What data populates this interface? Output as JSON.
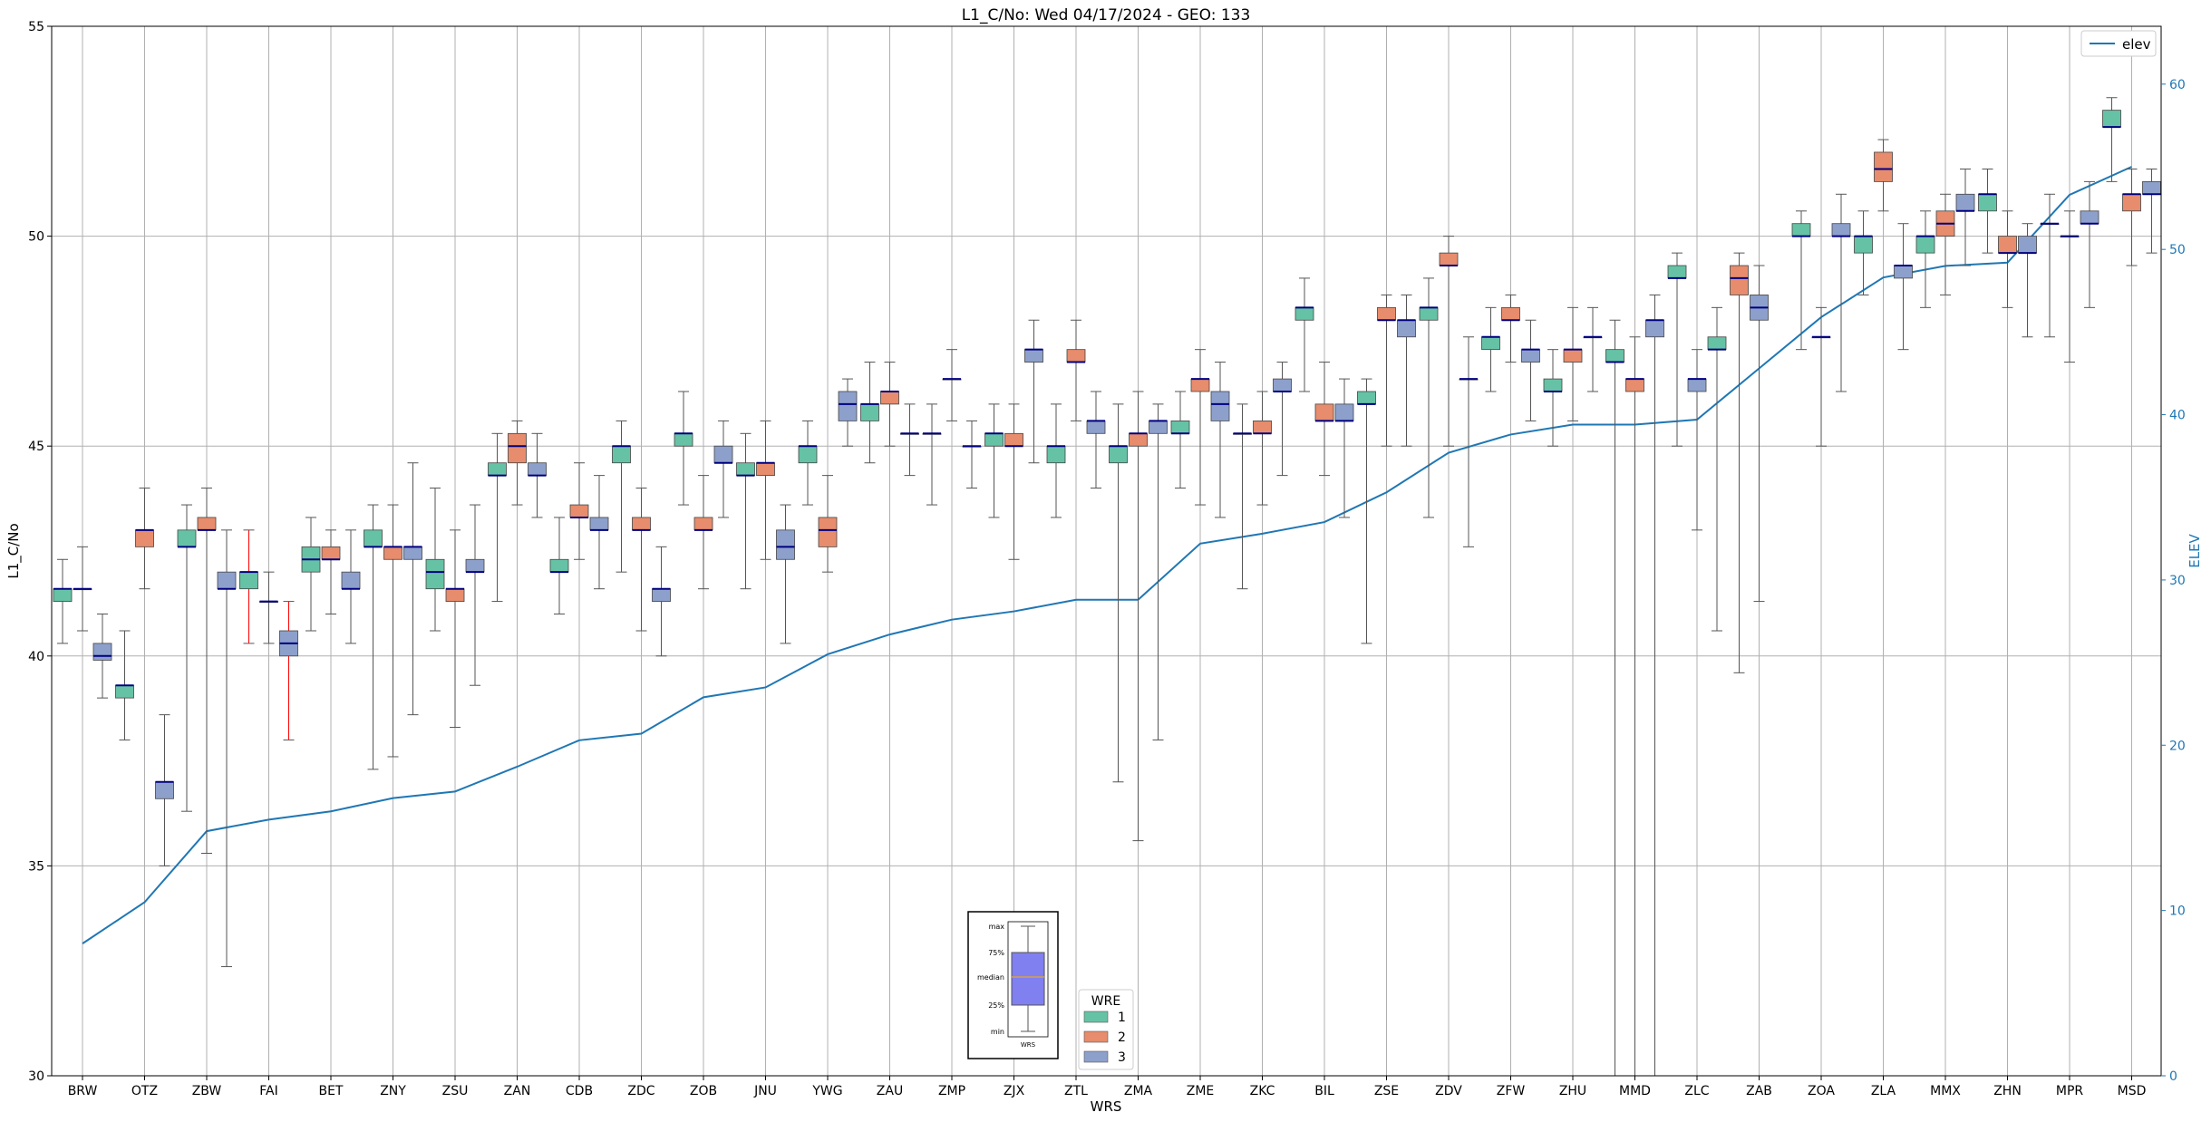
{
  "chart_data": {
    "type": "box",
    "title": "L1_C/No: Wed 04/17/2024 - GEO: 133",
    "xlabel": "WRS",
    "ylabel": "L1_C/No",
    "y2label": "ELEV",
    "ylim": [
      30,
      55
    ],
    "y2lim": [
      0,
      63.5
    ],
    "yticks": [
      30,
      35,
      40,
      45,
      50,
      55
    ],
    "y2ticks": [
      0,
      10,
      20,
      30,
      40,
      50,
      60
    ],
    "grid": true,
    "categories": [
      "BRW",
      "OTZ",
      "ZBW",
      "FAI",
      "BET",
      "ZNY",
      "ZSU",
      "ZAN",
      "CDB",
      "ZDC",
      "ZOB",
      "JNU",
      "YWG",
      "ZAU",
      "ZMP",
      "ZJX",
      "ZTL",
      "ZMA",
      "ZME",
      "ZKC",
      "BIL",
      "ZSE",
      "ZDV",
      "ZFW",
      "ZHU",
      "MMD",
      "ZLC",
      "ZAB",
      "ZOA",
      "ZLA",
      "MMX",
      "ZHN",
      "MPR",
      "MSD"
    ],
    "wre_colors": {
      "1": "#66c2a5",
      "2": "#e78c6c",
      "3": "#8da0cb"
    },
    "boxes": [
      {
        "station": "BRW",
        "wre": 1,
        "min": 40.3,
        "q1": 41.3,
        "median": 41.6,
        "q3": 41.6,
        "max": 42.3
      },
      {
        "station": "BRW",
        "wre": 3,
        "min": 40.6,
        "q1": 41.6,
        "median": 41.6,
        "q3": 41.6,
        "max": 42.6
      },
      {
        "station": "BRW",
        "wre": 3,
        "min": 39.0,
        "q1": 39.9,
        "median": 40.0,
        "q3": 40.3,
        "max": 41.0
      },
      {
        "station": "OTZ",
        "wre": 1,
        "min": 38.0,
        "q1": 39.0,
        "median": 39.3,
        "q3": 39.3,
        "max": 40.6
      },
      {
        "station": "OTZ",
        "wre": 2,
        "min": 41.6,
        "q1": 42.6,
        "median": 43.0,
        "q3": 43.0,
        "max": 44.0
      },
      {
        "station": "OTZ",
        "wre": 3,
        "min": 35.0,
        "q1": 36.6,
        "median": 37.0,
        "q3": 37.0,
        "max": 38.6
      },
      {
        "station": "ZBW",
        "wre": 1,
        "min": 36.3,
        "q1": 42.6,
        "median": 42.6,
        "q3": 43.0,
        "max": 43.6
      },
      {
        "station": "ZBW",
        "wre": 2,
        "min": 35.3,
        "q1": 43.0,
        "median": 43.0,
        "q3": 43.3,
        "max": 44.0
      },
      {
        "station": "ZBW",
        "wre": 3,
        "min": 32.6,
        "q1": 41.6,
        "median": 41.6,
        "q3": 42.0,
        "max": 43.0
      },
      {
        "station": "FAI",
        "wre": 1,
        "min": 40.3,
        "q1": 41.6,
        "median": 42.0,
        "q3": 42.0,
        "max": 43.0,
        "whisker": "#ff0000"
      },
      {
        "station": "FAI",
        "wre": 2,
        "min": 40.3,
        "q1": 41.3,
        "median": 41.3,
        "q3": 41.3,
        "max": 42.0
      },
      {
        "station": "FAI",
        "wre": 3,
        "min": 38.0,
        "q1": 40.0,
        "median": 40.3,
        "q3": 40.6,
        "max": 41.3,
        "whisker": "#ff0000"
      },
      {
        "station": "BET",
        "wre": 1,
        "min": 40.6,
        "q1": 42.0,
        "median": 42.3,
        "q3": 42.6,
        "max": 43.3
      },
      {
        "station": "BET",
        "wre": 2,
        "min": 41.0,
        "q1": 42.3,
        "median": 42.3,
        "q3": 42.6,
        "max": 43.0
      },
      {
        "station": "BET",
        "wre": 3,
        "min": 40.3,
        "q1": 41.6,
        "median": 41.6,
        "q3": 42.0,
        "max": 43.0
      },
      {
        "station": "ZNY",
        "wre": 1,
        "min": 37.3,
        "q1": 42.6,
        "median": 42.6,
        "q3": 43.0,
        "max": 43.6
      },
      {
        "station": "ZNY",
        "wre": 2,
        "min": 37.6,
        "q1": 42.3,
        "median": 42.6,
        "q3": 42.6,
        "max": 43.6
      },
      {
        "station": "ZNY",
        "wre": 3,
        "min": 38.6,
        "q1": 42.3,
        "median": 42.6,
        "q3": 42.6,
        "max": 44.6
      },
      {
        "station": "ZSU",
        "wre": 1,
        "min": 40.6,
        "q1": 41.6,
        "median": 42.0,
        "q3": 42.3,
        "max": 44.0
      },
      {
        "station": "ZSU",
        "wre": 2,
        "min": 38.3,
        "q1": 41.3,
        "median": 41.6,
        "q3": 41.6,
        "max": 43.0
      },
      {
        "station": "ZSU",
        "wre": 3,
        "min": 39.3,
        "q1": 42.0,
        "median": 42.0,
        "q3": 42.3,
        "max": 43.6
      },
      {
        "station": "ZAN",
        "wre": 1,
        "min": 41.3,
        "q1": 44.3,
        "median": 44.3,
        "q3": 44.6,
        "max": 45.3
      },
      {
        "station": "ZAN",
        "wre": 2,
        "min": 43.6,
        "q1": 44.6,
        "median": 45.0,
        "q3": 45.3,
        "max": 45.6
      },
      {
        "station": "ZAN",
        "wre": 3,
        "min": 43.3,
        "q1": 44.3,
        "median": 44.3,
        "q3": 44.6,
        "max": 45.3
      },
      {
        "station": "CDB",
        "wre": 1,
        "min": 41.0,
        "q1": 42.0,
        "median": 42.0,
        "q3": 42.3,
        "max": 43.3
      },
      {
        "station": "CDB",
        "wre": 2,
        "min": 42.3,
        "q1": 43.3,
        "median": 43.3,
        "q3": 43.6,
        "max": 44.6
      },
      {
        "station": "CDB",
        "wre": 3,
        "min": 41.6,
        "q1": 43.0,
        "median": 43.0,
        "q3": 43.3,
        "max": 44.3
      },
      {
        "station": "ZDC",
        "wre": 1,
        "min": 42.0,
        "q1": 44.6,
        "median": 45.0,
        "q3": 45.0,
        "max": 45.6
      },
      {
        "station": "ZDC",
        "wre": 2,
        "min": 40.6,
        "q1": 43.0,
        "median": 43.0,
        "q3": 43.3,
        "max": 44.0
      },
      {
        "station": "ZDC",
        "wre": 3,
        "min": 40.0,
        "q1": 41.3,
        "median": 41.6,
        "q3": 41.6,
        "max": 42.6
      },
      {
        "station": "ZOB",
        "wre": 1,
        "min": 43.6,
        "q1": 45.0,
        "median": 45.3,
        "q3": 45.3,
        "max": 46.3
      },
      {
        "station": "ZOB",
        "wre": 2,
        "min": 41.6,
        "q1": 43.0,
        "median": 43.0,
        "q3": 43.3,
        "max": 44.3
      },
      {
        "station": "ZOB",
        "wre": 3,
        "min": 43.3,
        "q1": 44.6,
        "median": 44.6,
        "q3": 45.0,
        "max": 45.6
      },
      {
        "station": "JNU",
        "wre": 1,
        "min": 41.6,
        "q1": 44.3,
        "median": 44.3,
        "q3": 44.6,
        "max": 45.3
      },
      {
        "station": "JNU",
        "wre": 2,
        "min": 42.3,
        "q1": 44.3,
        "median": 44.6,
        "q3": 44.6,
        "max": 45.6
      },
      {
        "station": "JNU",
        "wre": 3,
        "min": 40.3,
        "q1": 42.3,
        "median": 42.6,
        "q3": 43.0,
        "max": 43.6
      },
      {
        "station": "YWG",
        "wre": 1,
        "min": 43.6,
        "q1": 44.6,
        "median": 45.0,
        "q3": 45.0,
        "max": 45.6
      },
      {
        "station": "YWG",
        "wre": 2,
        "min": 42.0,
        "q1": 42.6,
        "median": 43.0,
        "q3": 43.3,
        "max": 44.3
      },
      {
        "station": "YWG",
        "wre": 3,
        "min": 45.0,
        "q1": 45.6,
        "median": 46.0,
        "q3": 46.3,
        "max": 46.6
      },
      {
        "station": "ZAU",
        "wre": 1,
        "min": 44.6,
        "q1": 45.6,
        "median": 46.0,
        "q3": 46.0,
        "max": 47.0
      },
      {
        "station": "ZAU",
        "wre": 2,
        "min": 45.0,
        "q1": 46.0,
        "median": 46.3,
        "q3": 46.3,
        "max": 47.0
      },
      {
        "station": "ZAU",
        "wre": 3,
        "min": 44.3,
        "q1": 45.3,
        "median": 45.3,
        "q3": 45.3,
        "max": 46.0
      },
      {
        "station": "ZMP",
        "wre": 1,
        "min": 43.6,
        "q1": 45.3,
        "median": 45.3,
        "q3": 45.3,
        "max": 46.0
      },
      {
        "station": "ZMP",
        "wre": 2,
        "min": 45.6,
        "q1": 46.6,
        "median": 46.6,
        "q3": 46.6,
        "max": 47.3
      },
      {
        "station": "ZMP",
        "wre": 3,
        "min": 44.0,
        "q1": 45.0,
        "median": 45.0,
        "q3": 45.0,
        "max": 45.6
      },
      {
        "station": "ZJX",
        "wre": 1,
        "min": 43.3,
        "q1": 45.0,
        "median": 45.3,
        "q3": 45.3,
        "max": 46.0
      },
      {
        "station": "ZJX",
        "wre": 2,
        "min": 42.3,
        "q1": 45.0,
        "median": 45.0,
        "q3": 45.3,
        "max": 46.0
      },
      {
        "station": "ZJX",
        "wre": 3,
        "min": 44.6,
        "q1": 47.0,
        "median": 47.3,
        "q3": 47.3,
        "max": 48.0
      },
      {
        "station": "ZTL",
        "wre": 1,
        "min": 43.3,
        "q1": 44.6,
        "median": 45.0,
        "q3": 45.0,
        "max": 46.0
      },
      {
        "station": "ZTL",
        "wre": 2,
        "min": 45.6,
        "q1": 47.0,
        "median": 47.0,
        "q3": 47.3,
        "max": 48.0
      },
      {
        "station": "ZTL",
        "wre": 3,
        "min": 44.0,
        "q1": 45.3,
        "median": 45.6,
        "q3": 45.6,
        "max": 46.3
      },
      {
        "station": "ZMA",
        "wre": 1,
        "min": 37.0,
        "q1": 44.6,
        "median": 45.0,
        "q3": 45.0,
        "max": 46.0
      },
      {
        "station": "ZMA",
        "wre": 2,
        "min": 35.6,
        "q1": 45.0,
        "median": 45.3,
        "q3": 45.3,
        "max": 46.3
      },
      {
        "station": "ZMA",
        "wre": 3,
        "min": 38.0,
        "q1": 45.3,
        "median": 45.6,
        "q3": 45.6,
        "max": 46.0
      },
      {
        "station": "ZME",
        "wre": 1,
        "min": 44.0,
        "q1": 45.3,
        "median": 45.3,
        "q3": 45.6,
        "max": 46.3
      },
      {
        "station": "ZME",
        "wre": 2,
        "min": 43.6,
        "q1": 46.3,
        "median": 46.6,
        "q3": 46.6,
        "max": 47.3
      },
      {
        "station": "ZME",
        "wre": 3,
        "min": 43.3,
        "q1": 45.6,
        "median": 46.0,
        "q3": 46.3,
        "max": 47.0
      },
      {
        "station": "ZKC",
        "wre": 1,
        "min": 41.6,
        "q1": 45.3,
        "median": 45.3,
        "q3": 45.3,
        "max": 46.0
      },
      {
        "station": "ZKC",
        "wre": 2,
        "min": 43.6,
        "q1": 45.3,
        "median": 45.3,
        "q3": 45.6,
        "max": 46.3
      },
      {
        "station": "ZKC",
        "wre": 3,
        "min": 44.3,
        "q1": 46.3,
        "median": 46.3,
        "q3": 46.6,
        "max": 47.0
      },
      {
        "station": "BIL",
        "wre": 1,
        "min": 46.3,
        "q1": 48.0,
        "median": 48.3,
        "q3": 48.3,
        "max": 49.0
      },
      {
        "station": "BIL",
        "wre": 2,
        "min": 44.3,
        "q1": 45.6,
        "median": 45.6,
        "q3": 46.0,
        "max": 47.0
      },
      {
        "station": "BIL",
        "wre": 3,
        "min": 43.3,
        "q1": 45.6,
        "median": 45.6,
        "q3": 46.0,
        "max": 46.6
      },
      {
        "station": "ZSE",
        "wre": 1,
        "min": 40.3,
        "q1": 46.0,
        "median": 46.0,
        "q3": 46.3,
        "max": 46.6
      },
      {
        "station": "ZSE",
        "wre": 2,
        "min": 45.0,
        "q1": 48.0,
        "median": 48.0,
        "q3": 48.3,
        "max": 48.6
      },
      {
        "station": "ZSE",
        "wre": 3,
        "min": 45.0,
        "q1": 47.6,
        "median": 48.0,
        "q3": 48.0,
        "max": 48.6
      },
      {
        "station": "ZDV",
        "wre": 1,
        "min": 43.3,
        "q1": 48.0,
        "median": 48.3,
        "q3": 48.3,
        "max": 49.0
      },
      {
        "station": "ZDV",
        "wre": 2,
        "min": 45.0,
        "q1": 49.3,
        "median": 49.3,
        "q3": 49.6,
        "max": 50.0
      },
      {
        "station": "ZDV",
        "wre": 3,
        "min": 42.6,
        "q1": 46.6,
        "median": 46.6,
        "q3": 46.6,
        "max": 47.6
      },
      {
        "station": "ZFW",
        "wre": 1,
        "min": 46.3,
        "q1": 47.3,
        "median": 47.6,
        "q3": 47.6,
        "max": 48.3
      },
      {
        "station": "ZFW",
        "wre": 2,
        "min": 47.0,
        "q1": 48.0,
        "median": 48.0,
        "q3": 48.3,
        "max": 48.6
      },
      {
        "station": "ZFW",
        "wre": 3,
        "min": 45.6,
        "q1": 47.0,
        "median": 47.3,
        "q3": 47.3,
        "max": 48.0
      },
      {
        "station": "ZHU",
        "wre": 1,
        "min": 45.0,
        "q1": 46.3,
        "median": 46.3,
        "q3": 46.6,
        "max": 47.3
      },
      {
        "station": "ZHU",
        "wre": 2,
        "min": 45.6,
        "q1": 47.0,
        "median": 47.3,
        "q3": 47.3,
        "max": 48.3
      },
      {
        "station": "ZHU",
        "wre": 3,
        "min": 46.3,
        "q1": 47.6,
        "median": 47.6,
        "q3": 47.6,
        "max": 48.3
      },
      {
        "station": "MMD",
        "wre": 1,
        "min": 30.0,
        "q1": 47.0,
        "median": 47.0,
        "q3": 47.3,
        "max": 48.0
      },
      {
        "station": "MMD",
        "wre": 2,
        "min": 30.0,
        "q1": 46.3,
        "median": 46.6,
        "q3": 46.6,
        "max": 47.6
      },
      {
        "station": "MMD",
        "wre": 3,
        "min": 30.0,
        "q1": 47.6,
        "median": 48.0,
        "q3": 48.0,
        "max": 48.6
      },
      {
        "station": "ZLC",
        "wre": 1,
        "min": 45.0,
        "q1": 49.0,
        "median": 49.0,
        "q3": 49.3,
        "max": 49.6
      },
      {
        "station": "ZLC",
        "wre": 3,
        "min": 43.0,
        "q1": 46.3,
        "median": 46.6,
        "q3": 46.6,
        "max": 47.3
      },
      {
        "station": "ZLC",
        "wre": 1,
        "min": 40.6,
        "q1": 47.3,
        "median": 47.3,
        "q3": 47.6,
        "max": 48.3
      },
      {
        "station": "ZAB",
        "wre": 2,
        "min": 39.6,
        "q1": 48.6,
        "median": 49.0,
        "q3": 49.3,
        "max": 49.6
      },
      {
        "station": "ZAB",
        "wre": 3,
        "min": 41.3,
        "q1": 48.0,
        "median": 48.3,
        "q3": 48.6,
        "max": 49.3
      },
      {
        "station": "ZOA",
        "wre": 1,
        "min": 47.3,
        "q1": 50.0,
        "median": 50.0,
        "q3": 50.3,
        "max": 50.6
      },
      {
        "station": "ZOA",
        "wre": 3,
        "min": 45.0,
        "q1": 47.6,
        "median": 47.6,
        "q3": 47.6,
        "max": 48.3
      },
      {
        "station": "ZOA",
        "wre": 3,
        "min": 46.3,
        "q1": 50.0,
        "median": 50.0,
        "q3": 50.3,
        "max": 51.0
      },
      {
        "station": "ZLA",
        "wre": 1,
        "min": 48.6,
        "q1": 49.6,
        "median": 50.0,
        "q3": 50.0,
        "max": 50.6
      },
      {
        "station": "ZLA",
        "wre": 2,
        "min": 50.6,
        "q1": 51.3,
        "median": 51.6,
        "q3": 52.0,
        "max": 52.3
      },
      {
        "station": "ZLA",
        "wre": 3,
        "min": 47.3,
        "q1": 49.0,
        "median": 49.3,
        "q3": 49.3,
        "max": 50.3
      },
      {
        "station": "MMX",
        "wre": 1,
        "min": 48.3,
        "q1": 49.6,
        "median": 50.0,
        "q3": 50.0,
        "max": 50.6
      },
      {
        "station": "MMX",
        "wre": 2,
        "min": 48.6,
        "q1": 50.0,
        "median": 50.3,
        "q3": 50.6,
        "max": 51.0
      },
      {
        "station": "MMX",
        "wre": 3,
        "min": 49.3,
        "q1": 50.6,
        "median": 50.6,
        "q3": 51.0,
        "max": 51.6
      },
      {
        "station": "ZHN",
        "wre": 1,
        "min": 49.6,
        "q1": 50.6,
        "median": 51.0,
        "q3": 51.0,
        "max": 51.6
      },
      {
        "station": "ZHN",
        "wre": 2,
        "min": 48.3,
        "q1": 49.6,
        "median": 49.6,
        "q3": 50.0,
        "max": 50.6
      },
      {
        "station": "ZHN",
        "wre": 3,
        "min": 47.6,
        "q1": 49.6,
        "median": 49.6,
        "q3": 50.0,
        "max": 50.3
      },
      {
        "station": "MPR",
        "wre": 3,
        "min": 47.6,
        "q1": 50.3,
        "median": 50.3,
        "q3": 50.3,
        "max": 51.0
      },
      {
        "station": "MPR",
        "wre": 3,
        "min": 47.0,
        "q1": 50.0,
        "median": 50.0,
        "q3": 50.0,
        "max": 50.6
      },
      {
        "station": "MPR",
        "wre": 3,
        "min": 48.3,
        "q1": 50.3,
        "median": 50.3,
        "q3": 50.6,
        "max": 51.3
      },
      {
        "station": "MSD",
        "wre": 1,
        "min": 51.3,
        "q1": 52.6,
        "median": 52.6,
        "q3": 53.0,
        "max": 53.3
      },
      {
        "station": "MSD",
        "wre": 2,
        "min": 49.3,
        "q1": 50.6,
        "median": 51.0,
        "q3": 51.0,
        "max": 51.6
      },
      {
        "station": "MSD",
        "wre": 3,
        "min": 49.6,
        "q1": 51.0,
        "median": 51.0,
        "q3": 51.3,
        "max": 51.6
      }
    ],
    "series": [
      {
        "name": "elev",
        "axis": "right",
        "color": "#1f77b4",
        "values": [
          8.0,
          10.5,
          14.8,
          15.5,
          16.0,
          16.8,
          17.2,
          18.7,
          20.3,
          20.7,
          22.9,
          23.5,
          25.5,
          26.7,
          27.6,
          28.1,
          28.8,
          28.8,
          32.2,
          32.8,
          33.5,
          35.3,
          37.7,
          38.8,
          39.4,
          39.4,
          39.7,
          42.8,
          45.9,
          48.3,
          49.0,
          49.2,
          53.3,
          55.0
        ]
      }
    ],
    "legend_elev": {
      "label": "elev",
      "placement": "top-right"
    },
    "legend_wre": {
      "title": "WRE",
      "labels": [
        "1",
        "2",
        "3"
      ],
      "placement": "bottom-center"
    },
    "key_box": {
      "labels": [
        "max",
        "75%",
        "median",
        "25%",
        "min"
      ],
      "xlabel": "WRS",
      "fill": "#8080f0",
      "median_color": "#d4a04c"
    }
  }
}
